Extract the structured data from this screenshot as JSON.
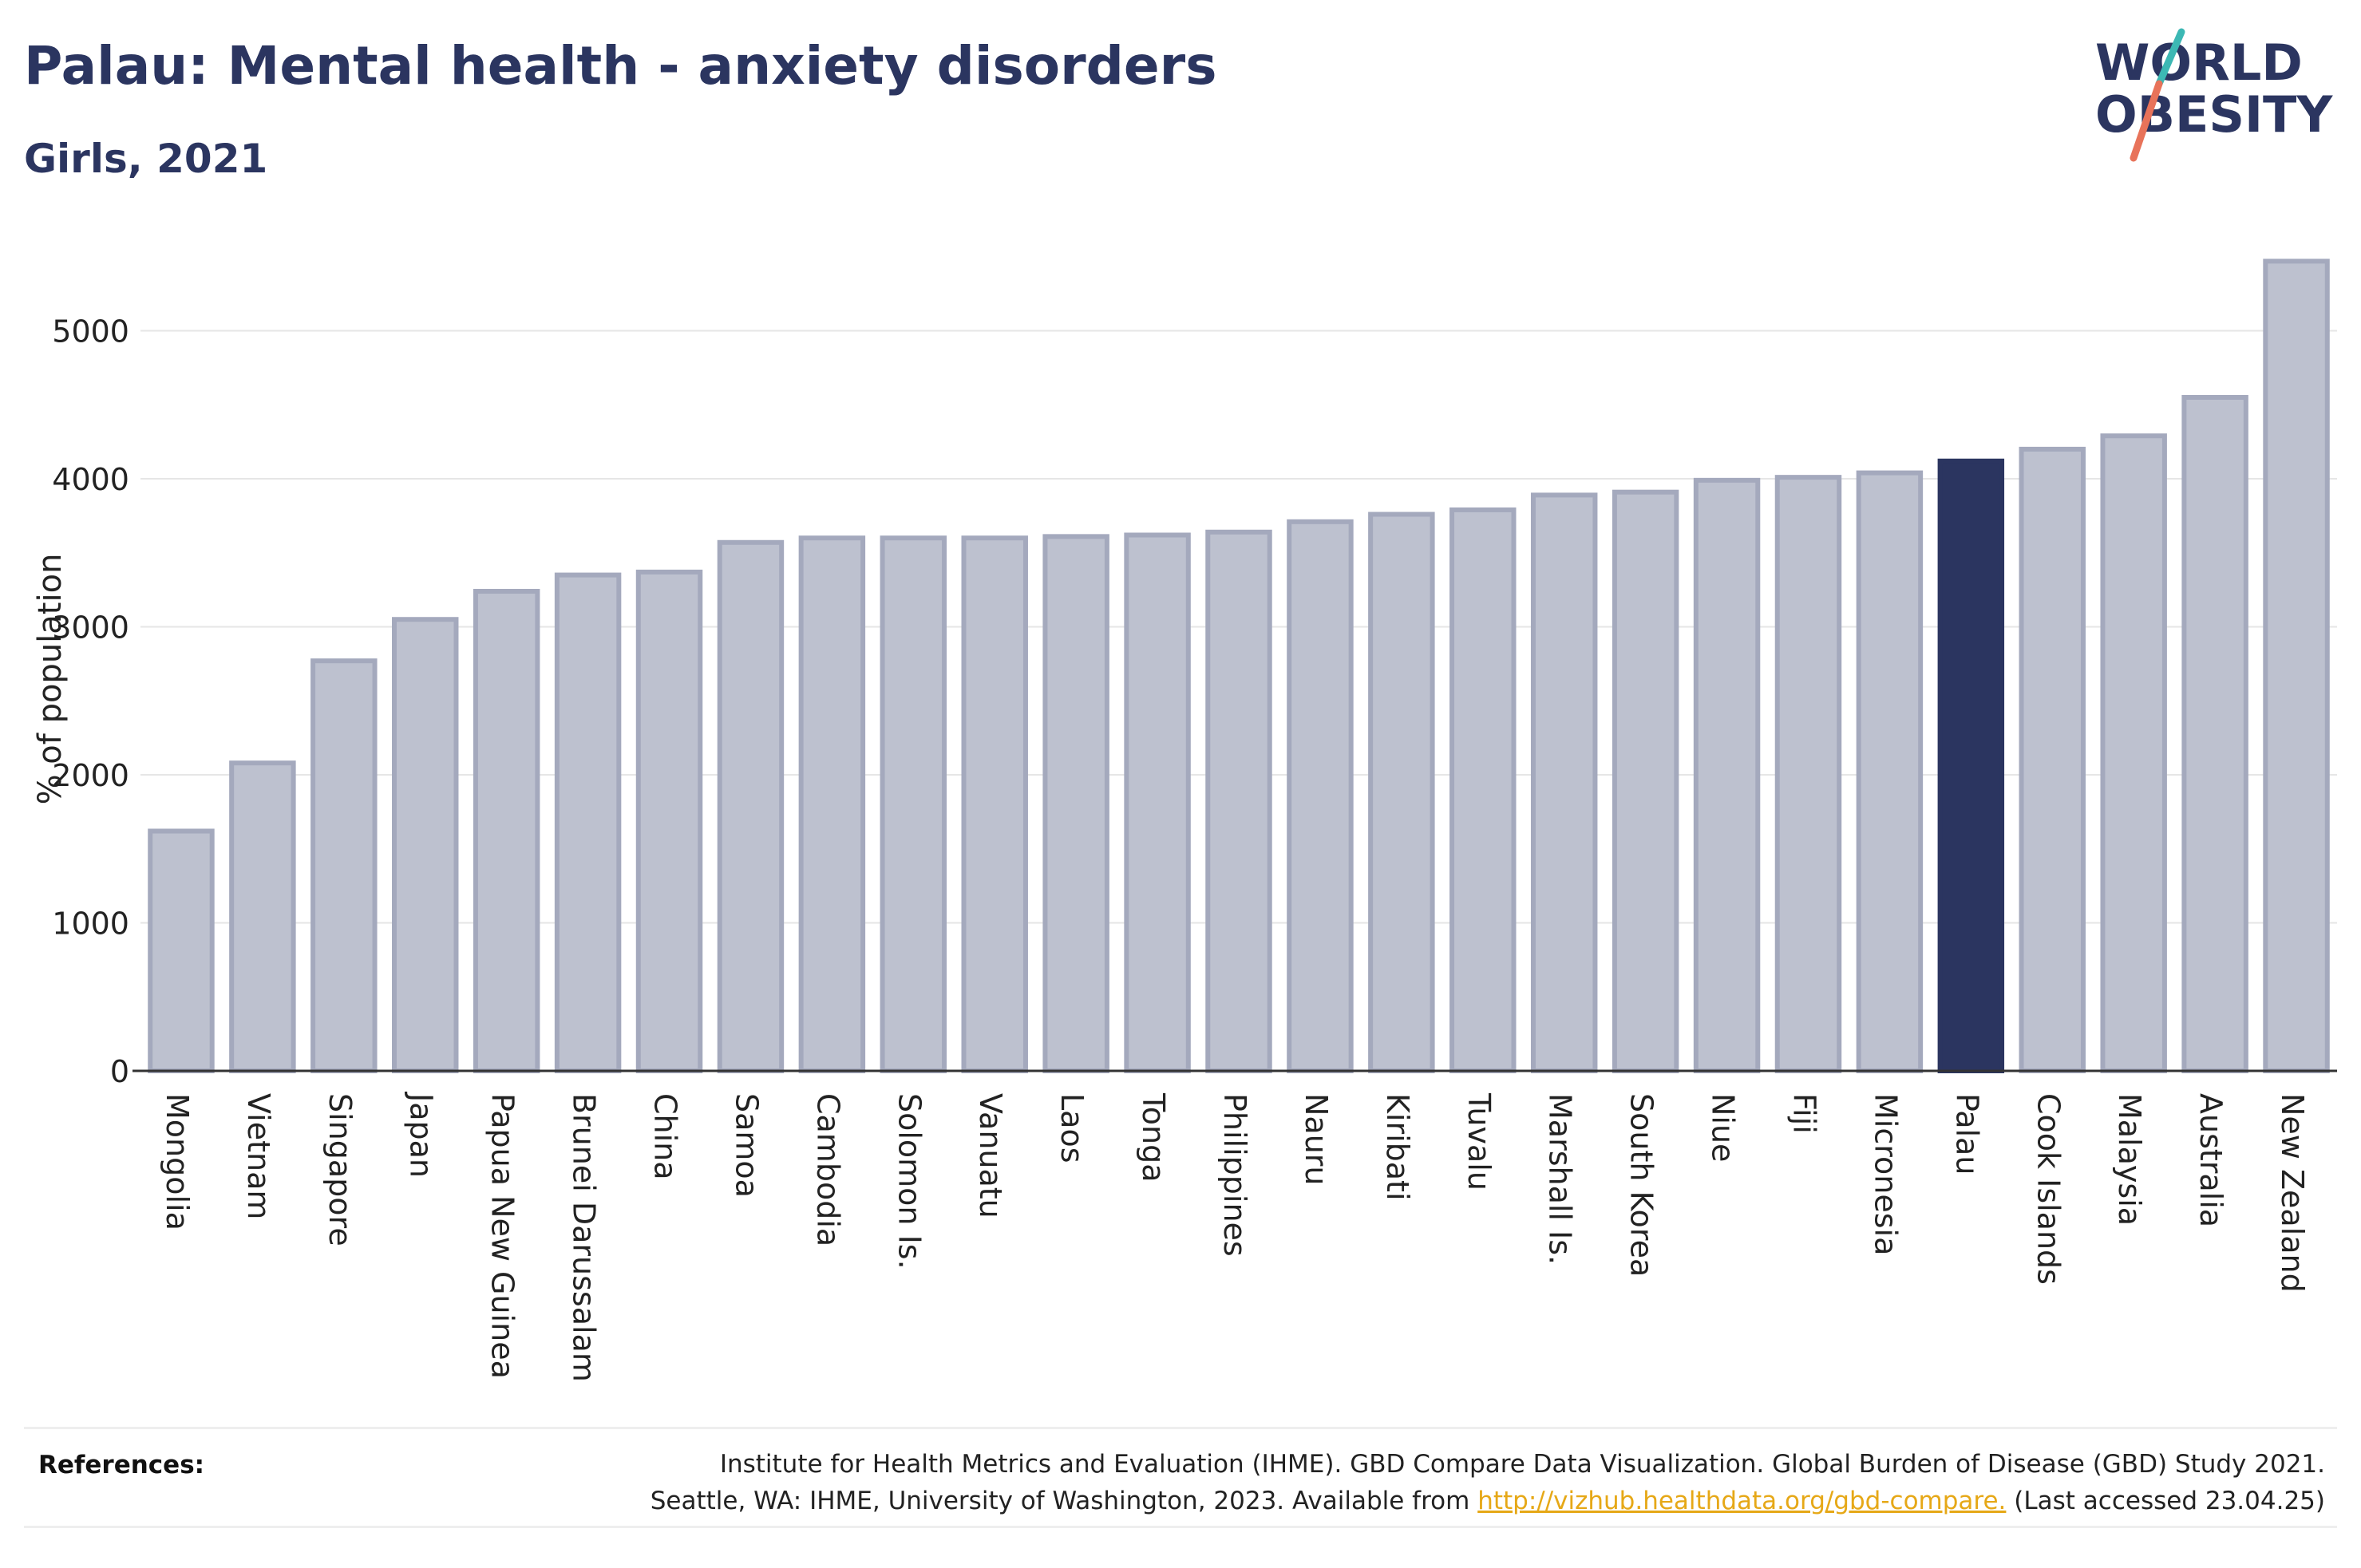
{
  "header": {
    "title": "Palau: Mental health - anxiety disorders",
    "subtitle": "Girls, 2021"
  },
  "logo": {
    "line1": "WORLD",
    "line2": "OBESITY",
    "accent_teal": "#3cb8b4",
    "accent_coral": "#e8735a",
    "text_color": "#2b3560"
  },
  "references": {
    "label": "References:",
    "line1": "Institute for Health Metrics and Evaluation (IHME). GBD Compare Data Visualization. Global Burden of Disease (GBD) Study 2021.",
    "line2_prefix": "Seattle, WA: IHME, University of Washington, 2023. Available from ",
    "link": "http://vizhub.healthdata.org/gbd-compare.",
    "line2_suffix": " (Last accessed 23.04.25)"
  },
  "chart_data": {
    "type": "bar",
    "title": "Palau: Mental health - anxiety disorders",
    "subtitle": "Girls, 2021",
    "xlabel": "",
    "ylabel": "% of population",
    "ylim": [
      0,
      5500
    ],
    "yticks": [
      0,
      1000,
      2000,
      3000,
      4000,
      5000
    ],
    "grid": true,
    "highlight": "Palau",
    "colors": {
      "bar": "#bdc1cf",
      "bar_edge": "#a4a9bd",
      "highlight": "#2b3560",
      "grid": "#e6e6e6",
      "axis": "#333333"
    },
    "categories": [
      "Mongolia",
      "Vietnam",
      "Singapore",
      "Japan",
      "Papua New Guinea",
      "Brunei Darussalam",
      "China",
      "Samoa",
      "Cambodia",
      "Solomon Is.",
      "Vanuatu",
      "Laos",
      "Tonga",
      "Philippines",
      "Nauru",
      "Kiribati",
      "Tuvalu",
      "Marshall Is.",
      "South Korea",
      "Niue",
      "Fiji",
      "Micronesia",
      "Palau",
      "Cook Islands",
      "Malaysia",
      "Australia",
      "New Zealand"
    ],
    "values": [
      1620,
      2080,
      2770,
      3050,
      3240,
      3350,
      3370,
      3570,
      3600,
      3600,
      3600,
      3610,
      3620,
      3640,
      3710,
      3760,
      3790,
      3890,
      3910,
      3990,
      4010,
      4040,
      4120,
      4200,
      4290,
      4550,
      5470
    ]
  }
}
